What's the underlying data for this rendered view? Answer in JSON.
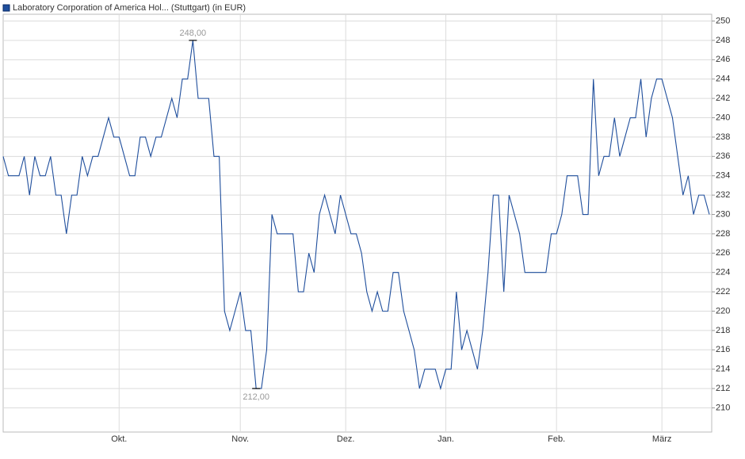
{
  "chart_data": {
    "type": "line",
    "title": "Laboratory Corporation of America Hol... (Stuttgart) (in EUR)",
    "categories": [
      null,
      null,
      null,
      null,
      null,
      null,
      null,
      null,
      null,
      null,
      null,
      null,
      null,
      null,
      null,
      null,
      null,
      null,
      null,
      null,
      null,
      null,
      "Okt.",
      null,
      null,
      null,
      null,
      null,
      null,
      null,
      null,
      null,
      null,
      null,
      null,
      null,
      null,
      null,
      null,
      null,
      null,
      null,
      null,
      null,
      null,
      "Nov.",
      null,
      null,
      null,
      null,
      null,
      null,
      null,
      null,
      null,
      null,
      null,
      null,
      null,
      null,
      null,
      null,
      null,
      null,
      null,
      "Dez.",
      null,
      null,
      null,
      null,
      null,
      null,
      null,
      null,
      null,
      null,
      null,
      null,
      null,
      null,
      null,
      null,
      null,
      null,
      "Jan.",
      null,
      null,
      null,
      null,
      null,
      null,
      null,
      null,
      null,
      null,
      null,
      null,
      null,
      null,
      null,
      null,
      null,
      null,
      null,
      null,
      "Feb.",
      null,
      null,
      null,
      null,
      null,
      null,
      null,
      null,
      null,
      null,
      null,
      null,
      null,
      null,
      null,
      null,
      null,
      null,
      null,
      "März",
      null,
      null,
      null,
      null,
      null,
      null,
      null,
      null,
      null
    ],
    "series": [
      {
        "name": "Laboratory Corporation of America Hol... (Stuttgart) (in EUR)",
        "color": "#1f4e9c",
        "values": [
          236,
          234,
          234,
          234,
          236,
          232,
          236,
          234,
          234,
          236,
          232,
          232,
          228,
          232,
          232,
          236,
          234,
          236,
          236,
          238,
          240,
          238,
          238,
          236,
          234,
          234,
          238,
          238,
          236,
          238,
          238,
          240,
          242,
          240,
          244,
          244,
          248,
          242,
          242,
          242,
          236,
          236,
          220,
          218,
          220,
          222,
          218,
          218,
          212,
          212,
          216,
          230,
          228,
          228,
          228,
          228,
          222,
          222,
          226,
          224,
          230,
          232,
          230,
          228,
          232,
          230,
          228,
          228,
          226,
          222,
          220,
          222,
          220,
          220,
          224,
          224,
          220,
          218,
          216,
          212,
          214,
          214,
          214,
          212,
          214,
          214,
          222,
          216,
          218,
          216,
          214,
          218,
          224,
          232,
          232,
          222,
          232,
          230,
          228,
          224,
          224,
          224,
          224,
          224,
          228,
          228,
          230,
          234,
          234,
          234,
          230,
          230,
          244,
          234,
          236,
          236,
          240,
          236,
          238,
          240,
          240,
          244,
          238,
          242,
          244,
          244,
          242,
          240,
          236,
          232,
          234,
          230,
          232,
          232,
          230
        ],
        "value_labels": [
          null,
          null,
          null,
          null,
          null,
          null,
          null,
          null,
          null,
          null,
          null,
          null,
          null,
          null,
          null,
          null,
          null,
          null,
          null,
          null,
          null,
          null,
          null,
          null,
          null,
          null,
          null,
          null,
          null,
          null,
          null,
          null,
          null,
          null,
          null,
          null,
          "248,00",
          null,
          null,
          null,
          null,
          null,
          null,
          null,
          null,
          null,
          null,
          null,
          "212,00",
          null,
          null,
          null,
          null,
          null,
          null,
          null,
          null,
          null,
          null,
          null,
          null,
          null,
          null,
          null,
          null,
          null,
          null,
          null,
          null,
          null,
          null,
          null,
          null,
          null,
          null,
          null,
          null,
          null,
          null,
          null,
          null,
          null,
          null,
          null,
          null,
          null,
          null,
          null,
          null,
          null,
          null,
          null,
          null,
          null,
          null,
          null,
          null,
          null,
          null,
          null,
          null,
          null,
          null,
          null,
          null,
          null,
          null,
          null,
          null,
          null,
          null,
          null,
          null,
          null,
          null,
          null,
          null,
          null,
          null,
          null,
          null,
          null,
          null,
          null,
          null,
          null,
          null,
          null,
          null,
          null,
          null,
          null,
          null,
          null,
          null
        ]
      }
    ],
    "ylim": [
      207.5,
      250.7
    ],
    "yticks": [
      210,
      212,
      214,
      216,
      218,
      220,
      222,
      224,
      226,
      228,
      230,
      232,
      234,
      236,
      238,
      240,
      242,
      244,
      246,
      248,
      250
    ],
    "grid": true
  }
}
